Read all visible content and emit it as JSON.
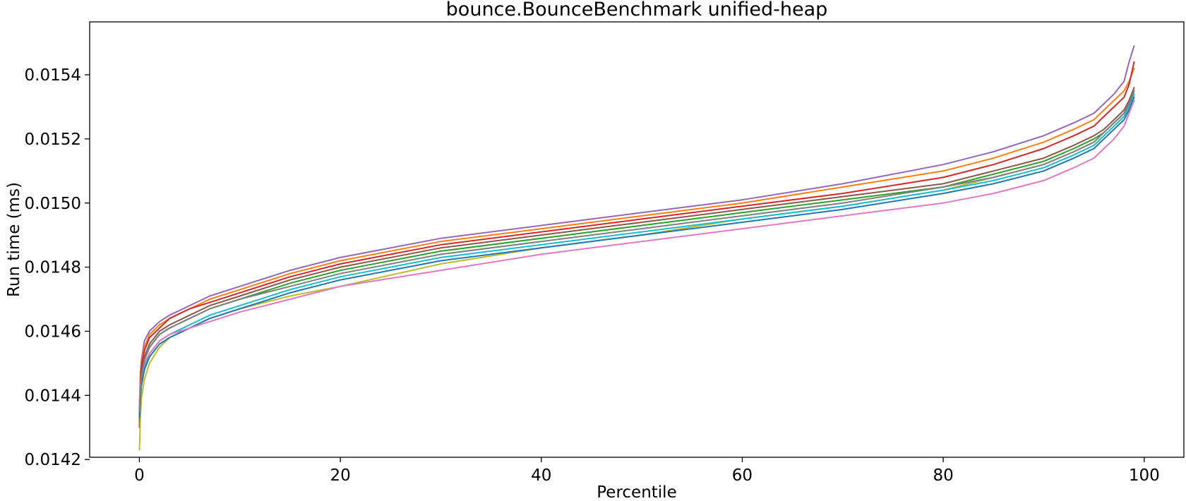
{
  "chart_data": {
    "type": "line",
    "title": "bounce.BounceBenchmark unified-heap",
    "xlabel": "Percentile",
    "ylabel": "Run time (ms)",
    "xlim": [
      -4.95,
      103.95
    ],
    "ylim": [
      0.014207,
      0.015565
    ],
    "xticks": [
      0,
      20,
      40,
      60,
      80,
      100
    ],
    "yticks": [
      0.0142,
      0.0144,
      0.0146,
      0.0148,
      0.015,
      0.0152,
      0.0154
    ],
    "xtick_labels": [
      "0",
      "20",
      "40",
      "60",
      "80",
      "100"
    ],
    "ytick_labels": [
      "0.0142",
      "0.0144",
      "0.0146",
      "0.0148",
      "0.0150",
      "0.0152",
      "0.0154"
    ],
    "grid": false,
    "legend": "none",
    "x": [
      0,
      0.1,
      0.2,
      0.5,
      1,
      2,
      3,
      5,
      7,
      10,
      15,
      20,
      30,
      40,
      50,
      60,
      70,
      80,
      85,
      90,
      93,
      95,
      96,
      97,
      98,
      98.5,
      99
    ],
    "series": [
      {
        "color": "#9467bd",
        "values": [
          0.01436,
          0.01447,
          0.01451,
          0.01457,
          0.0146,
          0.01463,
          0.01465,
          0.01468,
          0.01471,
          0.01474,
          0.01479,
          0.01483,
          0.01489,
          0.01493,
          0.01497,
          0.01501,
          0.01506,
          0.01512,
          0.01516,
          0.01521,
          0.01525,
          0.01528,
          0.01531,
          0.01534,
          0.01538,
          0.01544,
          0.01549
        ]
      },
      {
        "color": "#ff7f0e",
        "values": [
          0.01432,
          0.01446,
          0.0145,
          0.01455,
          0.01459,
          0.01462,
          0.01464,
          0.01467,
          0.0147,
          0.01473,
          0.01478,
          0.01482,
          0.01488,
          0.01492,
          0.01496,
          0.015,
          0.01505,
          0.0151,
          0.01514,
          0.01519,
          0.01523,
          0.01526,
          0.01529,
          0.01532,
          0.01535,
          0.01538,
          0.01542
        ]
      },
      {
        "color": "#d62728",
        "values": [
          0.0143,
          0.01444,
          0.01449,
          0.01454,
          0.01458,
          0.01461,
          0.01464,
          0.01467,
          0.01469,
          0.01472,
          0.01477,
          0.01481,
          0.01487,
          0.01491,
          0.01495,
          0.01499,
          0.01503,
          0.01508,
          0.01512,
          0.01517,
          0.01521,
          0.01524,
          0.01527,
          0.0153,
          0.01533,
          0.01537,
          0.01544
        ]
      },
      {
        "color": "#8c564b",
        "values": [
          0.01434,
          0.01442,
          0.01447,
          0.01452,
          0.01456,
          0.0146,
          0.01462,
          0.01465,
          0.01468,
          0.01471,
          0.01476,
          0.0148,
          0.01486,
          0.0149,
          0.01494,
          0.01498,
          0.01502,
          0.01506,
          0.0151,
          0.01514,
          0.01518,
          0.01521,
          0.01523,
          0.01526,
          0.01529,
          0.01532,
          0.01536
        ]
      },
      {
        "color": "#2ca02c",
        "values": [
          0.01433,
          0.01441,
          0.01446,
          0.01451,
          0.01455,
          0.01459,
          0.01461,
          0.01464,
          0.01467,
          0.0147,
          0.01475,
          0.01479,
          0.01485,
          0.01489,
          0.01493,
          0.01497,
          0.01501,
          0.01505,
          0.01509,
          0.01513,
          0.01517,
          0.0152,
          0.01522,
          0.01525,
          0.01528,
          0.01531,
          0.01535
        ]
      },
      {
        "color": "#bcbd22",
        "values": [
          0.01423,
          0.01433,
          0.01439,
          0.01445,
          0.0145,
          0.01455,
          0.01458,
          0.01461,
          0.01464,
          0.01467,
          0.01471,
          0.01474,
          0.01481,
          0.01486,
          0.0149,
          0.01495,
          0.01499,
          0.01504,
          0.01508,
          0.01512,
          0.01516,
          0.01519,
          0.01522,
          0.01525,
          0.01528,
          0.01531,
          0.01535
        ]
      },
      {
        "color": "#17becf",
        "values": [
          0.01435,
          0.0144,
          0.01444,
          0.01449,
          0.01453,
          0.01457,
          0.01459,
          0.01462,
          0.01465,
          0.01468,
          0.01473,
          0.01477,
          0.01483,
          0.01487,
          0.01491,
          0.01495,
          0.01499,
          0.01504,
          0.01507,
          0.01511,
          0.01515,
          0.01518,
          0.01521,
          0.01524,
          0.01527,
          0.0153,
          0.01534
        ]
      },
      {
        "color": "#1f77b4",
        "values": [
          0.01433,
          0.01439,
          0.01443,
          0.01448,
          0.01452,
          0.01456,
          0.01458,
          0.01461,
          0.01464,
          0.01467,
          0.01472,
          0.01476,
          0.01482,
          0.01486,
          0.0149,
          0.01494,
          0.01498,
          0.01503,
          0.01506,
          0.0151,
          0.01514,
          0.01517,
          0.0152,
          0.01523,
          0.01526,
          0.01529,
          0.01533
        ]
      },
      {
        "color": "#e377c2",
        "values": [
          0.01438,
          0.01443,
          0.01446,
          0.0145,
          0.01453,
          0.01457,
          0.01459,
          0.01461,
          0.01463,
          0.01466,
          0.0147,
          0.01474,
          0.01479,
          0.01484,
          0.01488,
          0.01492,
          0.01496,
          0.015,
          0.01503,
          0.01507,
          0.01511,
          0.01514,
          0.01517,
          0.0152,
          0.01524,
          0.01528,
          0.01532
        ]
      },
      {
        "color": "#7f7f7f",
        "values": [
          0.01435,
          0.01441,
          0.01446,
          0.01451,
          0.01455,
          0.01459,
          0.01461,
          0.01464,
          0.01467,
          0.0147,
          0.01474,
          0.01478,
          0.01484,
          0.01488,
          0.01492,
          0.01496,
          0.015,
          0.01505,
          0.01508,
          0.01512,
          0.01516,
          0.01519,
          0.01522,
          0.01525,
          0.01528,
          0.01531,
          0.01535
        ]
      }
    ]
  }
}
